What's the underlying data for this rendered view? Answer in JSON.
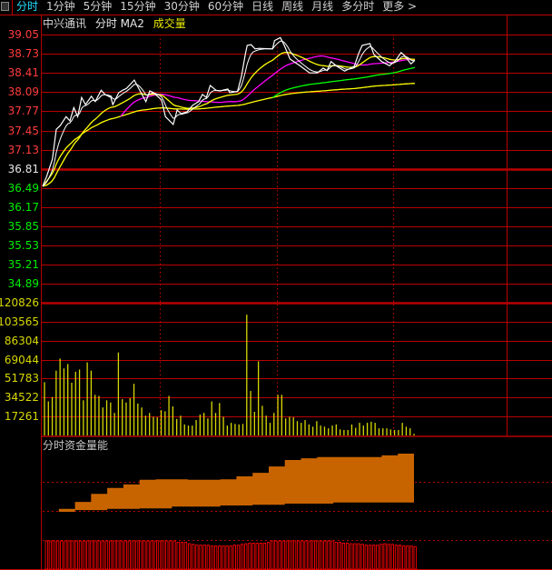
{
  "toolbar": {
    "icon": "panel-toggle-icon",
    "tabs": [
      {
        "label": "分时",
        "active": true
      },
      {
        "label": "1分钟"
      },
      {
        "label": "5分钟"
      },
      {
        "label": "15分钟"
      },
      {
        "label": "30分钟"
      },
      {
        "label": "60分钟"
      },
      {
        "label": "日线"
      },
      {
        "label": "周线"
      },
      {
        "label": "月线"
      },
      {
        "label": "多分时"
      },
      {
        "label": "更多 >"
      }
    ]
  },
  "header": {
    "stock_name": "中兴通讯",
    "mode": "分时 MA2",
    "volume_label": "成交量"
  },
  "colors": {
    "grid": "#b80000",
    "up": "#ff3c3c",
    "down": "#00ee00",
    "flat": "#e8e8e8",
    "volume": "#d8d800",
    "price_line": "#ffffff",
    "ma_short": "#ffff00",
    "ma_mid": "#ff00ff",
    "ma_long": "#00ff00",
    "avg_line": "#ffff00",
    "flow_area": "#c86400",
    "flow_bars": "#ff0000",
    "active_tab": "#22e0ff"
  },
  "chart_data": [
    {
      "type": "line",
      "name_label": "分时",
      "prev_close": 36.81,
      "ylim": [
        34.89,
        39.05
      ],
      "y_ticks": [
        "39.05",
        "38.73",
        "38.41",
        "38.09",
        "37.77",
        "37.45",
        "37.13",
        "36.81",
        "36.49",
        "36.17",
        "35.85",
        "35.53",
        "35.21",
        "34.89"
      ],
      "x_minutes_total": 240,
      "price": [
        [
          0,
          36.52
        ],
        [
          2,
          36.68
        ],
        [
          5,
          36.97
        ],
        [
          7,
          37.47
        ],
        [
          9,
          37.53
        ],
        [
          12,
          37.68
        ],
        [
          14,
          37.61
        ],
        [
          16,
          37.83
        ],
        [
          18,
          37.68
        ],
        [
          20,
          38.0
        ],
        [
          22,
          37.88
        ],
        [
          25,
          38.02
        ],
        [
          27,
          37.93
        ],
        [
          30,
          38.12
        ],
        [
          32,
          38.05
        ],
        [
          35,
          38.0
        ],
        [
          36,
          37.88
        ],
        [
          39,
          38.08
        ],
        [
          41,
          38.12
        ],
        [
          43,
          38.15
        ],
        [
          47,
          38.29
        ],
        [
          50,
          38.11
        ],
        [
          53,
          37.93
        ],
        [
          55,
          38.11
        ],
        [
          57,
          38.08
        ],
        [
          61,
          37.96
        ],
        [
          63,
          37.68
        ],
        [
          67,
          37.55
        ],
        [
          69,
          37.79
        ],
        [
          71,
          37.73
        ],
        [
          74,
          37.76
        ],
        [
          77,
          37.87
        ],
        [
          80,
          37.93
        ],
        [
          82,
          38.05
        ],
        [
          84,
          38.0
        ],
        [
          86,
          38.2
        ],
        [
          89,
          38.12
        ],
        [
          91,
          38.11
        ],
        [
          95,
          38.14
        ],
        [
          96,
          38.08
        ],
        [
          100,
          38.1
        ],
        [
          102,
          38.35
        ],
        [
          104,
          38.72
        ],
        [
          105,
          38.87
        ],
        [
          107,
          38.88
        ],
        [
          109,
          38.81
        ],
        [
          111,
          38.82
        ],
        [
          118,
          38.81
        ],
        [
          119,
          38.95
        ],
        [
          122,
          39.0
        ],
        [
          124,
          38.87
        ],
        [
          127,
          38.64
        ],
        [
          132,
          38.53
        ],
        [
          137,
          38.41
        ],
        [
          141,
          38.41
        ],
        [
          144,
          38.49
        ],
        [
          146,
          38.45
        ],
        [
          148,
          38.6
        ],
        [
          151,
          38.52
        ],
        [
          155,
          38.44
        ],
        [
          160,
          38.52
        ],
        [
          162,
          38.72
        ],
        [
          164,
          38.87
        ],
        [
          168,
          38.9
        ],
        [
          170,
          38.72
        ],
        [
          174,
          38.6
        ],
        [
          178,
          38.53
        ],
        [
          181,
          38.61
        ],
        [
          184,
          38.75
        ],
        [
          186,
          38.69
        ],
        [
          189,
          38.56
        ],
        [
          191,
          38.62
        ]
      ]
    },
    {
      "type": "bar",
      "name_label": "成交量",
      "ylim": [
        0,
        120826
      ],
      "y_ticks": [
        "120826",
        "103565",
        "86304",
        "69044",
        "51783",
        "34522",
        "17261"
      ],
      "values": [
        48500,
        31000,
        35000,
        59000,
        70000,
        61000,
        65000,
        48000,
        58000,
        60000,
        32000,
        66500,
        59000,
        37000,
        36000,
        25500,
        32000,
        30000,
        20500,
        75500,
        33000,
        30000,
        34000,
        47000,
        29000,
        25500,
        18000,
        20500,
        17000,
        16500,
        23000,
        22000,
        36000,
        26500,
        15000,
        18000,
        10000,
        9000,
        9000,
        14000,
        19000,
        20500,
        15500,
        31000,
        20500,
        29500,
        17000,
        9000,
        11500,
        10500,
        10000,
        10500,
        110000,
        40500,
        21500,
        67500,
        27000,
        18000,
        11500,
        20500,
        37000,
        37000,
        15500,
        17000,
        16500,
        13000,
        11500,
        14000,
        10000,
        8000,
        13000,
        9000,
        8000,
        6500,
        9000,
        10000,
        5500,
        5000,
        5000,
        10000,
        7000,
        11500,
        9000,
        11500,
        12500,
        11500,
        6500,
        6500,
        6500,
        5500,
        5000,
        5000,
        11500,
        8000,
        6500,
        1500
      ]
    },
    {
      "type": "area",
      "name_label": "分时资金量能",
      "upper": [
        0,
        5,
        17,
        31,
        41,
        47,
        55,
        56,
        56,
        55,
        55,
        56,
        61,
        67,
        78,
        89,
        92,
        94,
        94,
        94,
        94,
        97,
        100,
        100
      ],
      "lower": [
        0,
        0,
        3,
        3,
        5,
        5,
        6,
        6,
        9,
        9,
        9,
        11,
        11,
        12,
        12,
        14,
        14,
        14,
        16,
        16,
        16,
        16,
        16,
        16
      ],
      "bars": [
        1,
        1,
        1,
        1,
        1,
        1,
        1,
        1,
        1,
        1,
        1,
        1,
        1,
        1,
        1,
        1,
        1,
        1,
        1,
        1,
        1,
        1,
        1,
        1,
        1,
        1,
        1,
        1,
        1,
        1,
        1,
        1,
        1,
        1,
        1,
        0.95,
        0.95,
        0.95,
        0.9,
        0.88,
        0.85,
        0.85,
        0.85,
        0.85,
        0.82,
        0.82,
        0.82,
        0.82,
        0.82,
        0.82,
        0.85,
        0.85,
        0.88,
        0.9,
        0.92,
        0.92,
        0.92,
        0.92,
        0.92,
        0.95,
        1,
        1,
        1,
        1,
        1,
        1,
        1,
        1,
        1,
        1,
        1,
        1,
        1,
        1,
        1,
        1,
        1,
        0.95,
        0.95,
        0.92,
        0.92,
        0.9,
        0.9,
        0.9,
        0.88,
        0.85,
        0.85,
        0.85,
        0.85,
        0.88,
        0.9,
        0.88,
        0.88,
        0.85,
        0.85,
        0.82,
        0.82,
        0.82,
        0.8
      ]
    }
  ]
}
